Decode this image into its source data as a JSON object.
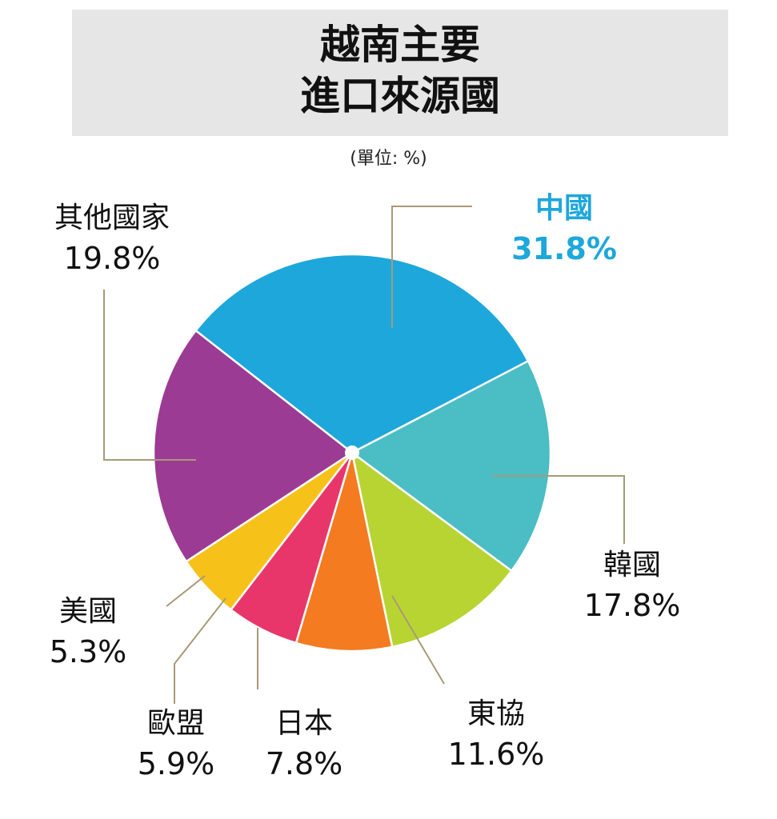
{
  "chart_data": {
    "type": "pie",
    "title": [
      "越南主要",
      "進口來源國"
    ],
    "unit": "(單位: %)",
    "slices": [
      {
        "label": "中國",
        "value": 31.8,
        "value_label": "31.8%",
        "color": "#1ea7db"
      },
      {
        "label": "韓國",
        "value": 17.8,
        "value_label": "17.8%",
        "color": "#4bbdc4"
      },
      {
        "label": "東協",
        "value": 11.6,
        "value_label": "11.6%",
        "color": "#b8d432"
      },
      {
        "label": "日本",
        "value": 7.8,
        "value_label": "7.8%",
        "color": "#f47b20"
      },
      {
        "label": "歐盟",
        "value": 5.9,
        "value_label": "5.9%",
        "color": "#e8366b"
      },
      {
        "label": "美國",
        "value": 5.3,
        "value_label": "5.3%",
        "color": "#f6c21a"
      },
      {
        "label": "其他國家",
        "value": 19.8,
        "value_label": "19.8%",
        "color": "#9b3b93"
      }
    ],
    "highlight_color": "#1ea7db",
    "leader_line_color": "#a89a78"
  }
}
